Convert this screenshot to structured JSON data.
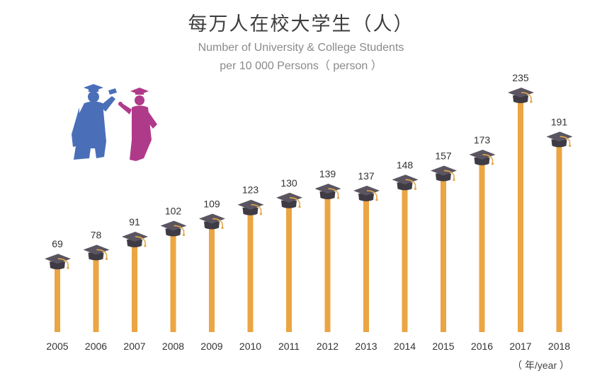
{
  "chart_data": {
    "type": "bar",
    "title": "每万人在校大学生（人）",
    "subtitle_line1": "Number of University & College Students",
    "subtitle_line2": "per 10 000 Persons（ person ）",
    "x_unit": "（ 年/year ）",
    "categories": [
      "2005",
      "2006",
      "2007",
      "2008",
      "2009",
      "2010",
      "2011",
      "2012",
      "2013",
      "2014",
      "2015",
      "2016",
      "2017",
      "2018"
    ],
    "values": [
      69,
      78,
      91,
      102,
      109,
      123,
      130,
      139,
      137,
      148,
      157,
      173,
      235,
      191
    ],
    "ylim": [
      0,
      235
    ],
    "grid": false,
    "legend": "none"
  },
  "colors": {
    "bar": "#EBA543",
    "cap": "#5a5560",
    "tassel": "#E3A84A",
    "graduate_left": "#4A6FB8",
    "graduate_right": "#B03A8A"
  },
  "icons": {
    "graduates": "graduates-silhouette-icon",
    "cap": "graduation-cap-icon"
  }
}
